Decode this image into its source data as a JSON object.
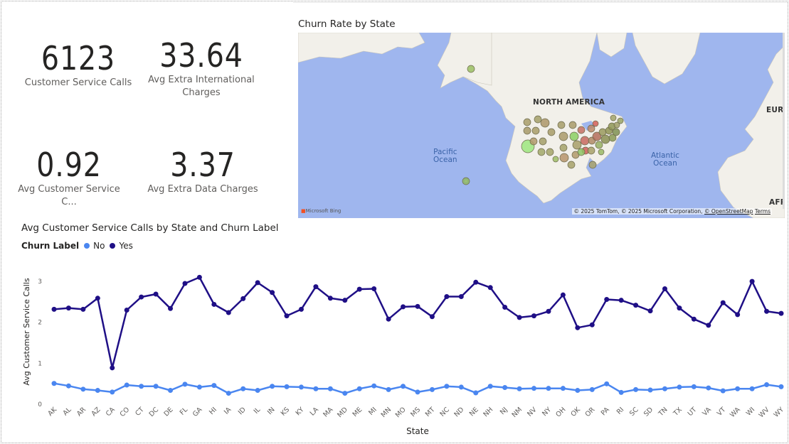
{
  "kpis": [
    {
      "value": "6123",
      "label_lines": [
        "Customer Service Calls"
      ]
    },
    {
      "value": "33.64",
      "label_lines": [
        "Avg Extra International",
        "Charges"
      ]
    },
    {
      "value": "0.92",
      "label_lines": [
        "Avg Customer Service C..."
      ]
    },
    {
      "value": "3.37",
      "label_lines": [
        "Avg Extra Data Charges"
      ]
    }
  ],
  "map": {
    "title": "Churn Rate by State",
    "labels": {
      "north_america": "NORTH AMERICA",
      "pacific": [
        "Pacific",
        "Ocean"
      ],
      "atlantic": [
        "Atlantic",
        "Ocean"
      ],
      "europe": "EURO",
      "africa": "AFRI"
    },
    "bing": "Microsoft Bing",
    "attribution_prefix": "© 2025 TomTom, © 2025 Microsoft Corporation,",
    "attribution_osm": "© OpenStreetMap",
    "attribution_terms": "Terms",
    "colors": {
      "water": "#9fb6ee",
      "land": "#f2f0ea",
      "low": "#8ad065",
      "mid": "#a49a6a",
      "high": "#d9645a"
    }
  },
  "chart_data": {
    "type": "line",
    "title": "Avg Customer Service Calls by State and Churn Label",
    "legend_title": "Churn Label",
    "xlabel": "State",
    "ylabel": "Avg Customer Service Calls",
    "ylim": [
      0,
      3
    ],
    "yticks": [
      0,
      1,
      2,
      3
    ],
    "legend_position": "top-left",
    "grid": false,
    "categories": [
      "AK",
      "AL",
      "AR",
      "AZ",
      "CA",
      "CO",
      "CT",
      "DC",
      "DE",
      "FL",
      "GA",
      "HI",
      "IA",
      "ID",
      "IL",
      "IN",
      "KS",
      "KY",
      "LA",
      "MA",
      "MD",
      "ME",
      "MI",
      "MN",
      "MO",
      "MS",
      "MT",
      "NC",
      "ND",
      "NE",
      "NH",
      "NJ",
      "NM",
      "NV",
      "NY",
      "OH",
      "OK",
      "OR",
      "PA",
      "RI",
      "SC",
      "SD",
      "TN",
      "TX",
      "UT",
      "VA",
      "VT",
      "WA",
      "WI",
      "WV",
      "WY"
    ],
    "series": [
      {
        "name": "No",
        "color": "#4a86f0",
        "values": [
          0.49,
          0.43,
          0.35,
          0.32,
          0.28,
          0.45,
          0.42,
          0.42,
          0.32,
          0.47,
          0.4,
          0.44,
          0.25,
          0.36,
          0.32,
          0.42,
          0.41,
          0.4,
          0.36,
          0.36,
          0.25,
          0.36,
          0.43,
          0.34,
          0.42,
          0.28,
          0.34,
          0.42,
          0.4,
          0.26,
          0.42,
          0.39,
          0.36,
          0.37,
          0.37,
          0.37,
          0.32,
          0.34,
          0.48,
          0.27,
          0.34,
          0.33,
          0.36,
          0.4,
          0.41,
          0.38,
          0.31,
          0.36,
          0.36,
          0.46,
          0.41
        ]
      },
      {
        "name": "Yes",
        "color": "#1f0f86",
        "values": [
          2.3,
          2.33,
          2.3,
          2.57,
          0.87,
          2.28,
          2.6,
          2.67,
          2.32,
          2.93,
          3.08,
          2.42,
          2.22,
          2.56,
          2.95,
          2.71,
          2.14,
          2.3,
          2.85,
          2.57,
          2.52,
          2.79,
          2.8,
          2.06,
          2.36,
          2.37,
          2.12,
          2.61,
          2.61,
          2.96,
          2.83,
          2.35,
          2.1,
          2.14,
          2.25,
          2.65,
          1.85,
          1.92,
          2.54,
          2.52,
          2.4,
          2.26,
          2.8,
          2.33,
          2.06,
          1.91,
          2.46,
          2.17,
          2.98,
          2.25,
          2.2
        ]
      }
    ]
  }
}
